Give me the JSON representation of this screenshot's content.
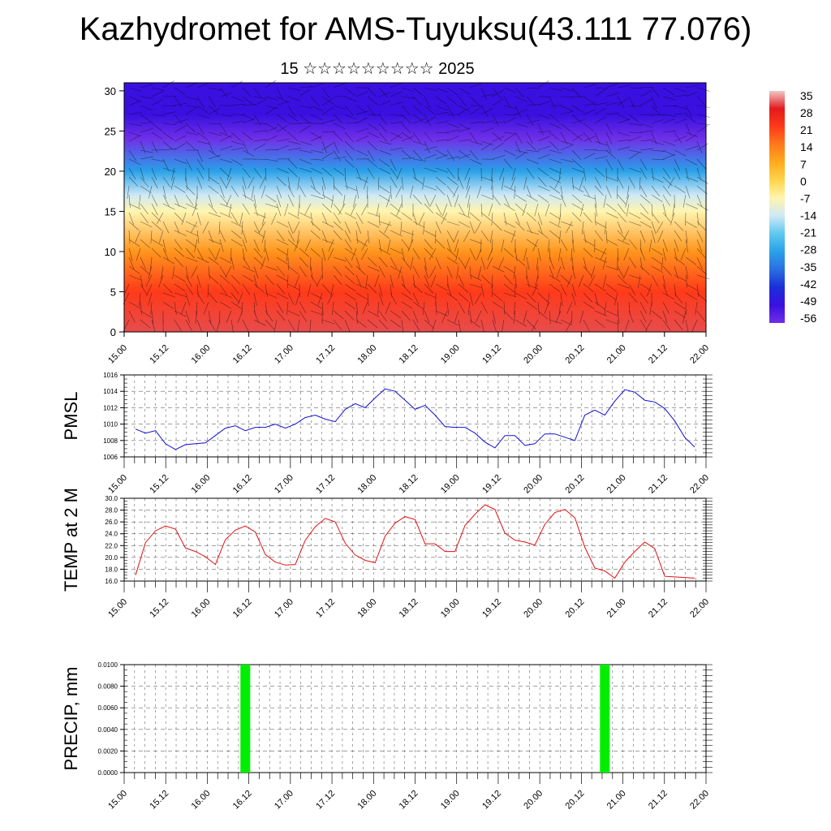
{
  "page": {
    "title": "Kazhydromet for AMS-Tuyuksu(43.111 77.076)",
    "subtitle": "15 ☆☆☆☆☆☆☆☆☆ 2025"
  },
  "chart_data": [
    {
      "type": "heatmap",
      "title": "",
      "x_labels": [
        "15.00",
        "15.12",
        "16.00",
        "16.12",
        "17.00",
        "17.12",
        "18.00",
        "18.12",
        "19.00",
        "19.12",
        "20.00",
        "20.12",
        "21.00",
        "21.12",
        "22.00"
      ],
      "y_ticks": [
        0,
        5,
        10,
        15,
        20,
        25,
        30
      ],
      "ylim": [
        0,
        31
      ],
      "colorbar_labels": [
        "35",
        "28",
        "21",
        "14",
        "7",
        "0",
        "-7",
        "-14",
        "-21",
        "-28",
        "-35",
        "-42",
        "-49",
        "-56"
      ],
      "colorbar_colors": [
        "#f0c8c8",
        "#e31a1c",
        "#ff3a1a",
        "#ff7a1a",
        "#ffaa1e",
        "#ffd54a",
        "#fff5b0",
        "#cfe9f5",
        "#5ec8f0",
        "#2aa1e8",
        "#2a6fe0",
        "#1a2fd8",
        "#3a10e0",
        "#7030e8"
      ],
      "temperature_by_level": [
        {
          "level": 0,
          "value": 30
        },
        {
          "level": 5,
          "value": 21
        },
        {
          "level": 10,
          "value": 10
        },
        {
          "level": 15,
          "value": -7
        },
        {
          "level": 17,
          "value": -14
        },
        {
          "level": 20,
          "value": -28
        },
        {
          "level": 24,
          "value": -56
        },
        {
          "level": 27,
          "value": -49
        },
        {
          "level": 31,
          "value": -49
        }
      ]
    },
    {
      "type": "line",
      "ylabel": "PMSL",
      "ylim": [
        1006,
        1016
      ],
      "y_ticks": [
        "1006",
        "1008",
        "1010",
        "1012",
        "1014",
        "1016"
      ],
      "x_labels": [
        "15.00",
        "15.12",
        "16.00",
        "16.12",
        "17.00",
        "17.12",
        "18.00",
        "18.12",
        "19.00",
        "19.12",
        "20.00",
        "20.12",
        "21.00",
        "21.12",
        "22.00"
      ],
      "color": "#1010d0",
      "values": [
        1009.4,
        1008.9,
        1009.2,
        1007.6,
        1006.9,
        1007.5,
        1007.6,
        1007.7,
        1008.6,
        1009.5,
        1009.8,
        1009.2,
        1009.6,
        1009.6,
        1010.0,
        1009.5,
        1010.0,
        1010.8,
        1011.1,
        1010.6,
        1010.3,
        1011.8,
        1012.5,
        1012.0,
        1013.2,
        1014.3,
        1014.0,
        1012.9,
        1011.8,
        1012.3,
        1011.1,
        1009.7,
        1009.6,
        1009.6,
        1008.9,
        1007.8,
        1007.1,
        1008.6,
        1008.6,
        1007.4,
        1007.6,
        1008.8,
        1008.8,
        1008.4,
        1008.0,
        1011.1,
        1011.7,
        1011.1,
        1012.8,
        1014.2,
        1013.9,
        1012.9,
        1012.7,
        1011.9,
        1010.4,
        1008.4,
        1007.2
      ]
    },
    {
      "type": "line",
      "ylabel": "TEMP at 2 M",
      "ylim": [
        16,
        30
      ],
      "y_ticks": [
        "16.0",
        "18.0",
        "20.0",
        "22.0",
        "24.0",
        "26.0",
        "28.0",
        "30.0"
      ],
      "x_labels": [
        "15.00",
        "15.12",
        "16.00",
        "16.12",
        "17.00",
        "17.12",
        "18.00",
        "18.12",
        "19.00",
        "19.12",
        "20.00",
        "20.12",
        "21.00",
        "21.12",
        "22.00"
      ],
      "color": "#e01010",
      "values": [
        17.0,
        22.5,
        24.5,
        25.3,
        24.8,
        21.6,
        21.0,
        20.1,
        18.8,
        23.0,
        24.6,
        25.3,
        24.3,
        20.5,
        19.2,
        18.7,
        18.8,
        22.9,
        25.2,
        26.6,
        26.0,
        22.4,
        20.4,
        19.5,
        19.1,
        23.6,
        25.8,
        26.9,
        26.4,
        22.3,
        22.3,
        21.0,
        21.0,
        25.4,
        27.3,
        28.9,
        28.1,
        24.1,
        22.9,
        22.6,
        22.1,
        25.6,
        27.6,
        28.1,
        26.7,
        21.7,
        18.2,
        17.7,
        16.5,
        19.2,
        21.0,
        22.6,
        21.5,
        16.8,
        16.7,
        16.6,
        16.5
      ]
    },
    {
      "type": "bar",
      "ylabel": "PRECIP, mm",
      "ylim": [
        0,
        0.01
      ],
      "y_ticks": [
        "0.0000",
        "0.0020",
        "0.0040",
        "0.0060",
        "0.0080",
        "0.0100"
      ],
      "x_labels": [
        "15.00",
        "15.12",
        "16.00",
        "16.12",
        "17.00",
        "17.12",
        "18.00",
        "18.12",
        "19.00",
        "19.12",
        "20.00",
        "20.12",
        "21.00",
        "21.12",
        "22.00"
      ],
      "color": "#00ee00",
      "bars": [
        {
          "x_index": 11,
          "value": 0.01
        },
        {
          "x_index": 47,
          "value": 0.01
        }
      ]
    }
  ]
}
